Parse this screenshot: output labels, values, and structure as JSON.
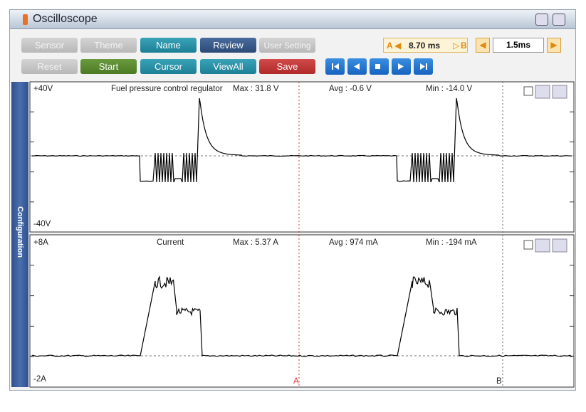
{
  "window": {
    "title": "Oscilloscope"
  },
  "toolbar": {
    "row1": [
      "Sensor",
      "Theme",
      "Name",
      "Review",
      "User Setting"
    ],
    "row2": [
      "Reset",
      "Start",
      "Cursor",
      "ViewAll",
      "Save"
    ],
    "cursor_readout": {
      "a": "A",
      "value": "8.70 ms",
      "b": "B"
    },
    "time_div": "1.5ms"
  },
  "side_tab": "Configuration",
  "channels": [
    {
      "top": "+40V",
      "name": "Fuel pressure control regulator",
      "max": "Max : 31.8 V",
      "avg": "Avg : -0.6 V",
      "min": "Min : -14.0 V",
      "bottom": "-40V"
    },
    {
      "top": "+8A",
      "name": "Current",
      "max": "Max : 5.37 A",
      "avg": "Avg : 974 mA",
      "min": "Min : -194 mA",
      "bottom": "-2A"
    }
  ],
  "cursors": [
    "A",
    "B"
  ]
}
